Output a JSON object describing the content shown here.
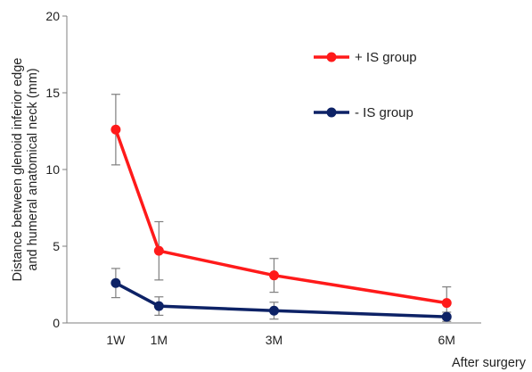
{
  "chart_data": {
    "type": "line",
    "title": "",
    "xlabel": "After surgery",
    "ylabel_lines": [
      "Distance between glenoid inferior edge",
      "and humeral anatomical neck (mm)"
    ],
    "x": [
      0.25,
      1,
      3,
      6
    ],
    "x_tick_labels": [
      "1W",
      "1M",
      "3M",
      "6M"
    ],
    "xlim": [
      -0.6,
      6.6
    ],
    "ylim": [
      0,
      20
    ],
    "y_ticks": [
      0,
      5,
      10,
      15,
      20
    ],
    "grid": false,
    "legend_position": "top-right",
    "series": [
      {
        "name": "+ IS group",
        "color": "#ff1a1a",
        "values": [
          12.6,
          4.7,
          3.1,
          1.3
        ],
        "error": [
          2.3,
          1.9,
          1.1,
          1.05
        ]
      },
      {
        "name": "- IS group",
        "color": "#0d2266",
        "values": [
          2.6,
          1.1,
          0.8,
          0.4
        ],
        "error": [
          0.95,
          0.6,
          0.55,
          0.3
        ]
      }
    ]
  }
}
